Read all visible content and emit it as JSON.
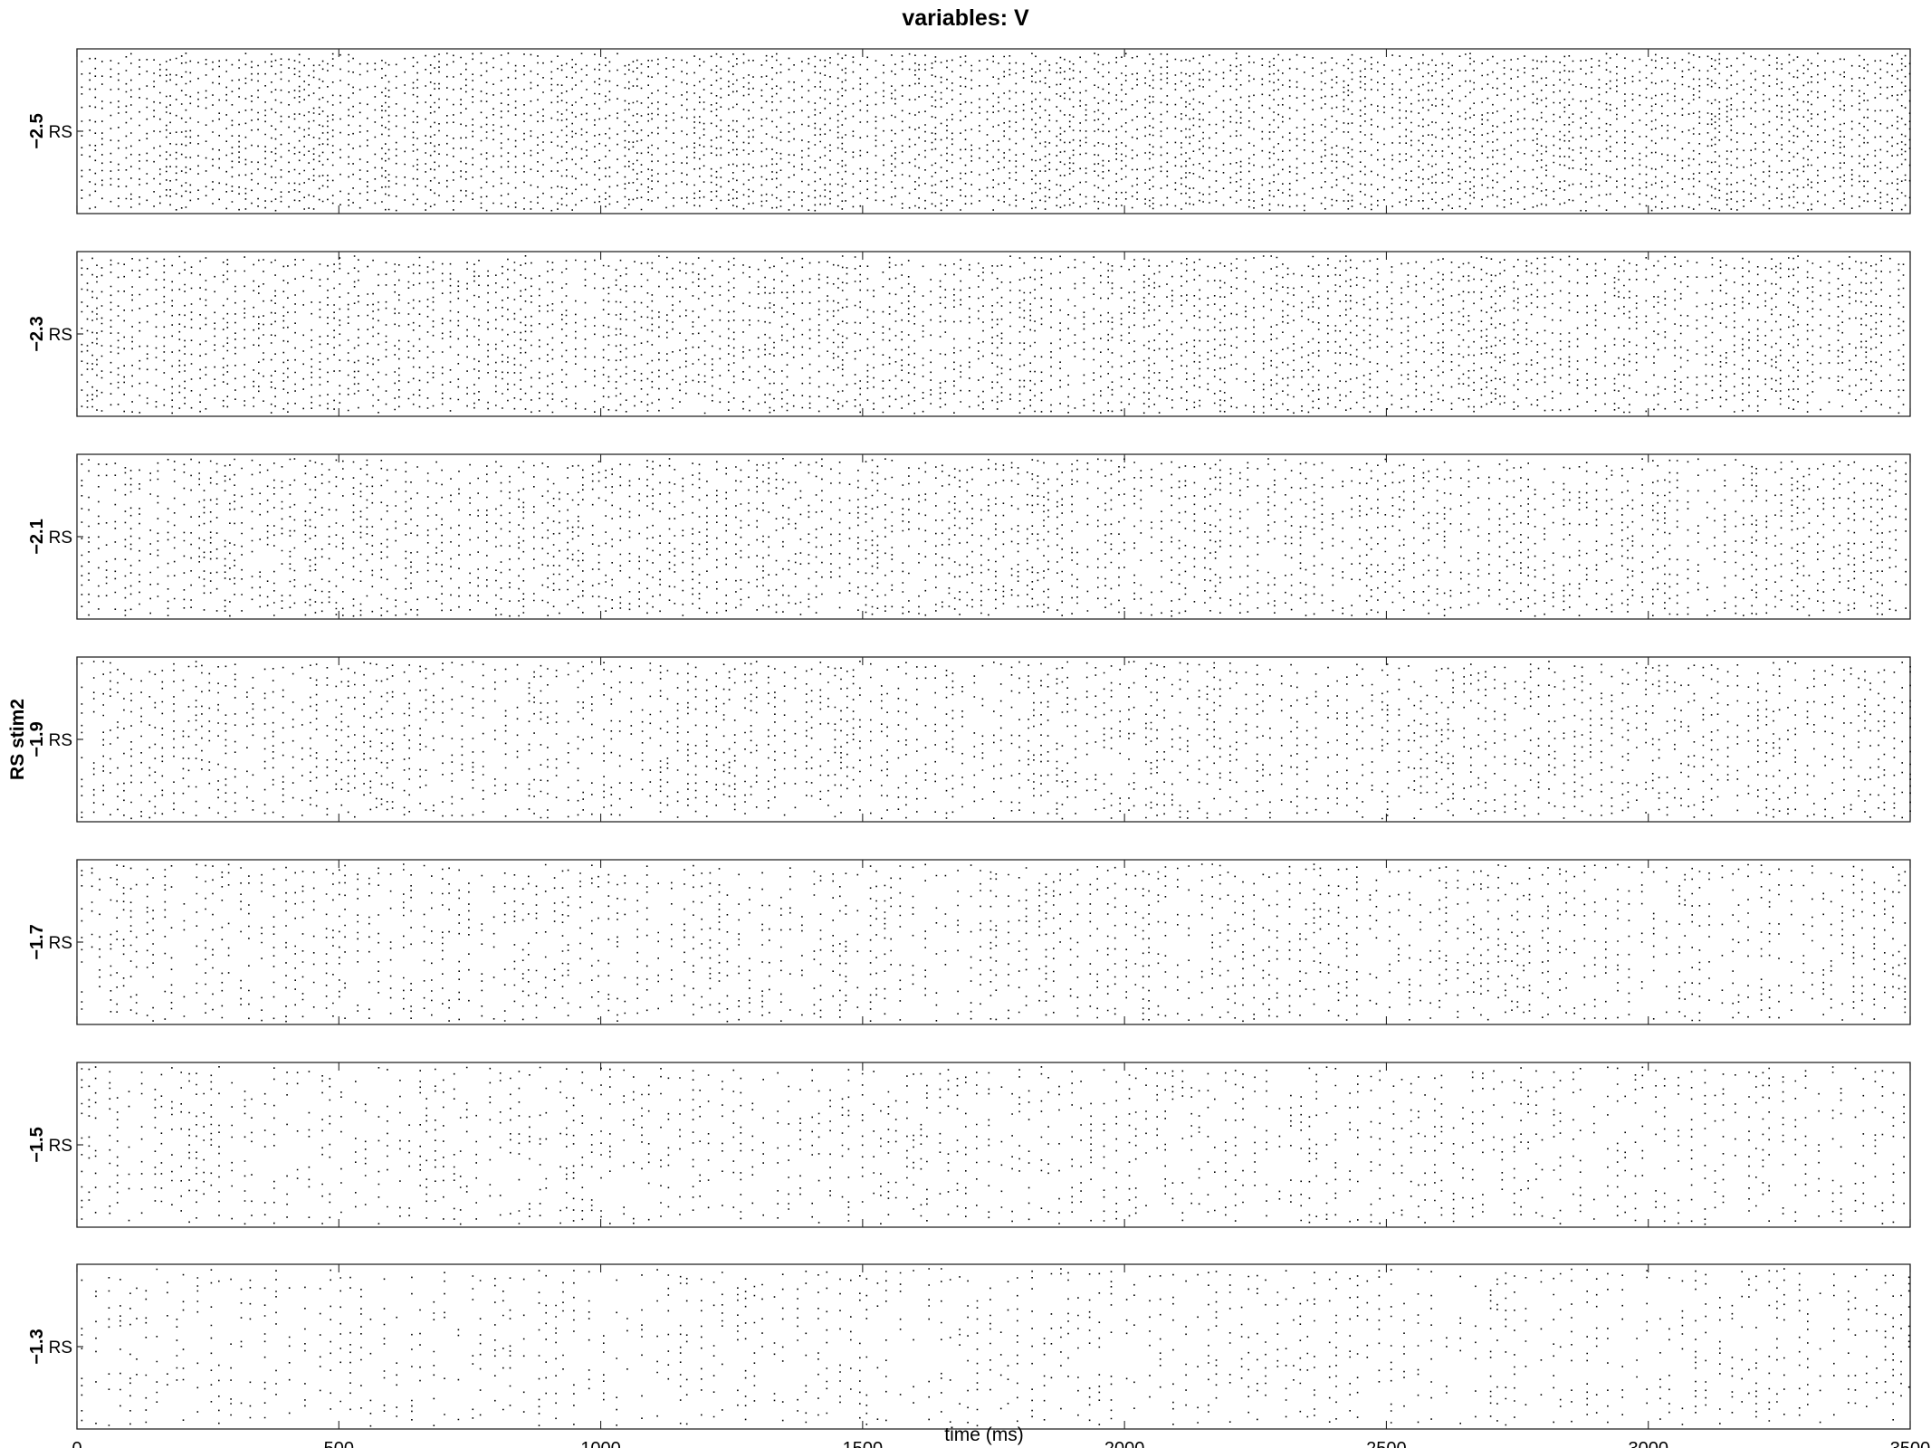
{
  "chart_data": {
    "type": "scatter",
    "title": "variables: V",
    "ylabel": "RS stim2",
    "xlabel": "time (ms)",
    "xlim": [
      0,
      3500
    ],
    "x_ticks": [
      "0",
      "500",
      "1000",
      "1500",
      "2000",
      "2500",
      "3000",
      "3500"
    ],
    "panels": [
      {
        "param": "−2.5",
        "pop": "RS"
      },
      {
        "param": "−2.3",
        "pop": "RS"
      },
      {
        "param": "−2.1",
        "pop": "RS"
      },
      {
        "param": "−1.9",
        "pop": "RS"
      },
      {
        "param": "−1.7",
        "pop": "RS"
      },
      {
        "param": "−1.5",
        "pop": "RS"
      },
      {
        "param": "−1.3",
        "pop": "RS"
      }
    ],
    "grid": false,
    "legend": "none",
    "marker_color": "#000000"
  }
}
